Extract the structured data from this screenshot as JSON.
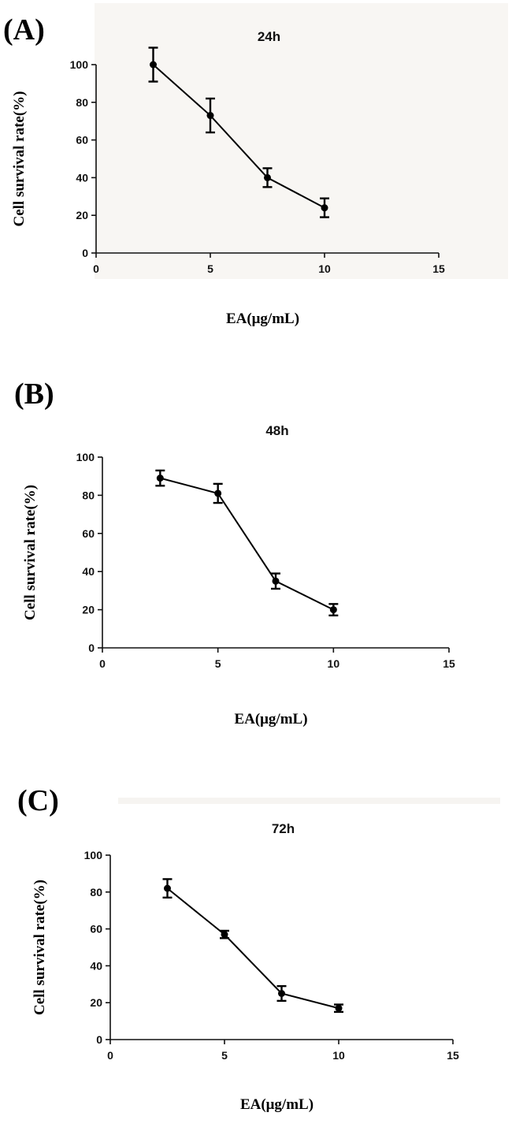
{
  "panels": [
    {
      "label": "(A)"
    },
    {
      "label": "(B)"
    },
    {
      "label": "(C)"
    }
  ],
  "chart_data": [
    {
      "type": "line",
      "title": "24h",
      "xlabel": "EA(μg/mL)",
      "ylabel": "Cell survival rate(%)",
      "xlim": [
        0,
        15
      ],
      "ylim": [
        0,
        100
      ],
      "xticks": [
        0,
        5,
        10,
        15
      ],
      "yticks": [
        0,
        20,
        40,
        60,
        80,
        100
      ],
      "x": [
        2.5,
        5,
        7.5,
        10
      ],
      "series": [
        {
          "values": [
            100,
            73,
            40,
            24
          ],
          "errors": [
            9,
            9,
            5,
            5
          ]
        }
      ],
      "grid": false,
      "color": "#000000"
    },
    {
      "type": "line",
      "title": "48h",
      "xlabel": "EA(μg/mL)",
      "ylabel": "Cell survival rate(%)",
      "xlim": [
        0,
        15
      ],
      "ylim": [
        0,
        100
      ],
      "xticks": [
        0,
        5,
        10,
        15
      ],
      "yticks": [
        0,
        20,
        40,
        60,
        80,
        100
      ],
      "x": [
        2.5,
        5,
        7.5,
        10
      ],
      "series": [
        {
          "values": [
            89,
            81,
            35,
            20
          ],
          "errors": [
            4,
            5,
            4,
            3
          ]
        }
      ],
      "grid": false,
      "color": "#000000"
    },
    {
      "type": "line",
      "title": "72h",
      "xlabel": "EA(μg/mL)",
      "ylabel": "Cell survival rate(%)",
      "xlim": [
        0,
        15
      ],
      "ylim": [
        0,
        100
      ],
      "xticks": [
        0,
        5,
        10,
        15
      ],
      "yticks": [
        0,
        20,
        40,
        60,
        80,
        100
      ],
      "x": [
        2.5,
        5,
        7.5,
        10
      ],
      "series": [
        {
          "values": [
            82,
            57,
            25,
            17
          ],
          "errors": [
            5,
            2,
            4,
            2
          ]
        }
      ],
      "grid": false,
      "color": "#000000"
    }
  ]
}
